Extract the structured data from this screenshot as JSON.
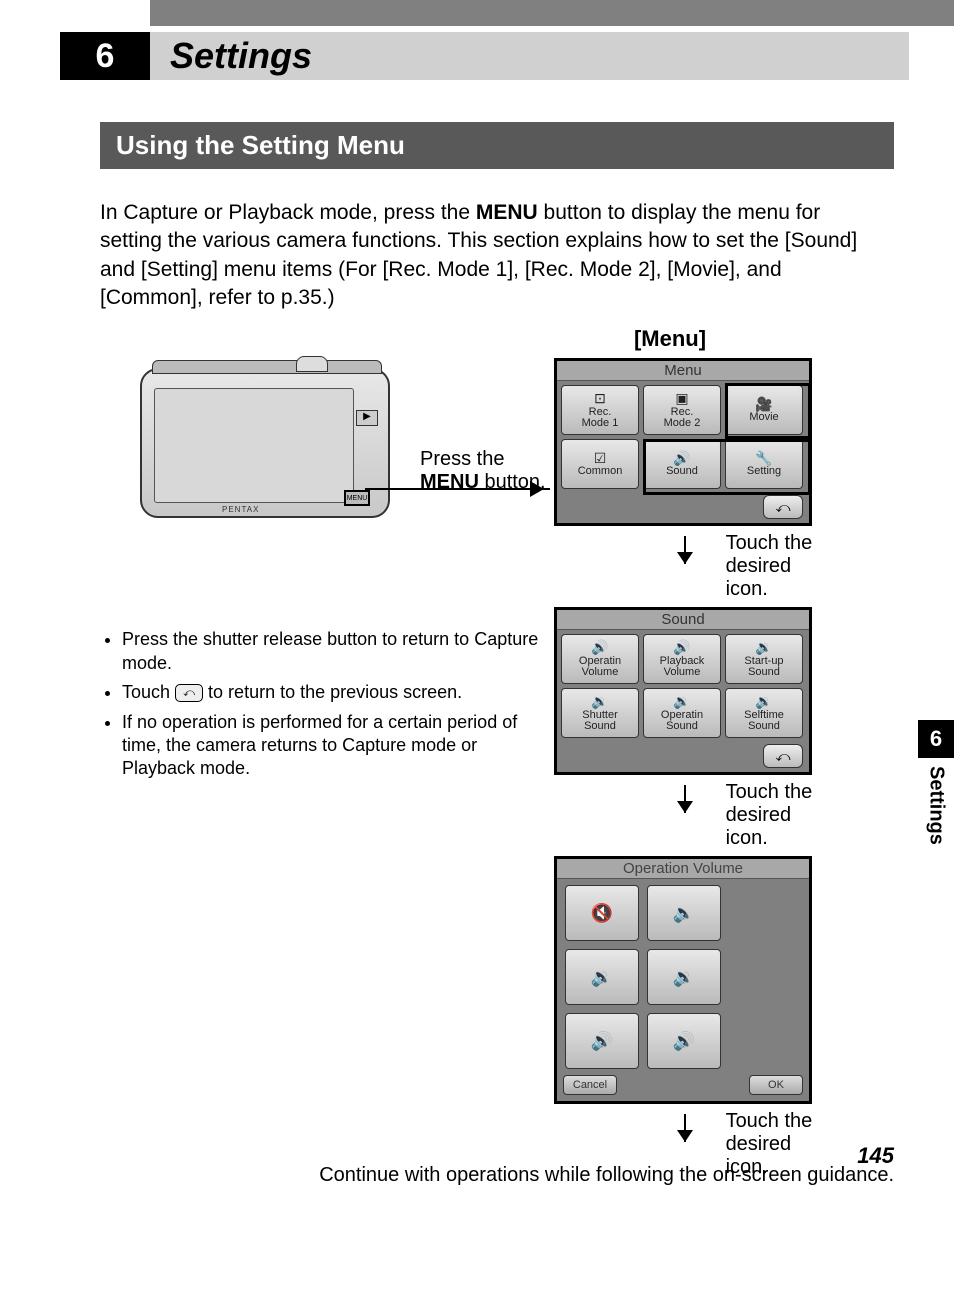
{
  "chapter_number": "6",
  "chapter_title": "Settings",
  "section_title": "Using the Setting Menu",
  "intro_part1": "In Capture or Playback mode, press the ",
  "intro_menu": "MENU",
  "intro_part2": " button to display the menu for setting the various camera functions. This section explains how to set the [Sound] and [Setting] menu items (For [Rec. Mode 1], [Rec. Mode 2], [Movie], and [Common], refer to p.35.)",
  "menu_bracket_label": "[Menu]",
  "press_line1": "Press the",
  "press_line2a": "MENU",
  "press_line2b": " button.",
  "touch_line1": "Touch the",
  "touch_line2": "desired icon.",
  "bullet1": "Press the shutter release button to return to Capture mode.",
  "bullet2a": "Touch ",
  "bullet2b": " to return to the previous screen.",
  "bullet3": "If no operation is performed for a certain period of time, the camera returns to Capture mode or Playback mode.",
  "continue_text": "Continue with operations while following the on-screen guidance.",
  "screen1": {
    "title": "Menu",
    "buttons": [
      {
        "icon": "⊡",
        "label": "Rec.\nMode 1"
      },
      {
        "icon": "▣",
        "label": "Rec.\nMode 2"
      },
      {
        "icon": "🎥",
        "label": "Movie"
      },
      {
        "icon": "☑",
        "label": "Common"
      },
      {
        "icon": "🔊",
        "label": "Sound"
      },
      {
        "icon": "🔧",
        "label": "Setting"
      }
    ]
  },
  "screen2": {
    "title": "Sound",
    "buttons": [
      {
        "icon": "🔊",
        "label": "Operatin\nVolume"
      },
      {
        "icon": "🔊",
        "label": "Playback\nVolume"
      },
      {
        "icon": "🔉",
        "label": "Start-up\nSound"
      },
      {
        "icon": "🔉",
        "label": "Shutter\nSound"
      },
      {
        "icon": "🔉",
        "label": "Operatin\nSound"
      },
      {
        "icon": "🔉",
        "label": "Selftime\nSound"
      }
    ]
  },
  "screen3": {
    "title": "Operation Volume",
    "vols": [
      "🔇",
      "🔈",
      "🔉",
      "🔉",
      "🔊",
      "🔊"
    ],
    "cancel": "Cancel",
    "ok": "OK"
  },
  "side_tab_num": "6",
  "side_tab_text": "Settings",
  "page_number": "145",
  "colors": {
    "header_gray": "#808080",
    "chapter_bg": "#d0d0d0",
    "section_bg": "#595959",
    "screen_bg": "#808080"
  }
}
